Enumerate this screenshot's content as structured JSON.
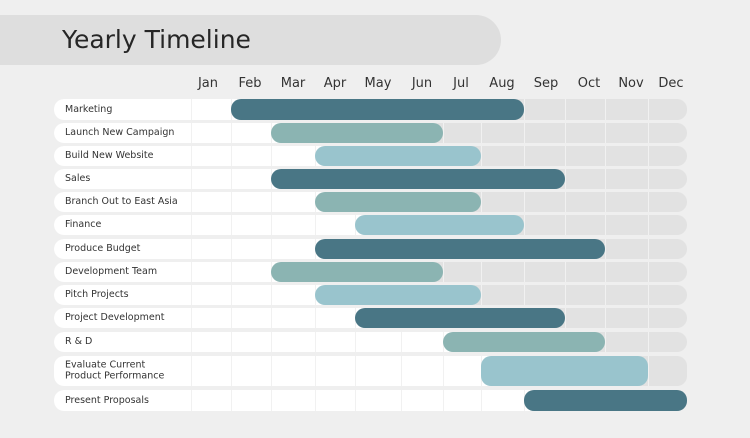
{
  "title": "Yearly Timeline",
  "months": [
    "Jan",
    "Feb",
    "Mar",
    "Apr",
    "May",
    "Jun",
    "Jul",
    "Aug",
    "Sep",
    "Oct",
    "Nov",
    "Dec"
  ],
  "colors": {
    "background": "#efefef",
    "title_banner": "#dedede",
    "track": "#e2e2e2",
    "track_passed": "#ffffff",
    "bar_dark": "#497685",
    "bar_mid": "#8bb4b2",
    "bar_light": "#99c4cd"
  },
  "tasks": [
    {
      "label": "Marketing",
      "start": 1.0,
      "end": 8.0,
      "style": "dark"
    },
    {
      "label": "Launch New Campaign",
      "start": 2.0,
      "end": 6.0,
      "style": "mid"
    },
    {
      "label": "Build New Website",
      "start": 3.0,
      "end": 7.0,
      "style": "light"
    },
    {
      "label": "Sales",
      "start": 2.0,
      "end": 9.0,
      "style": "dark"
    },
    {
      "label": "Branch Out to East Asia",
      "start": 3.0,
      "end": 7.0,
      "style": "mid"
    },
    {
      "label": "Finance",
      "start": 4.0,
      "end": 8.0,
      "style": "light"
    },
    {
      "label": "Produce Budget",
      "start": 3.0,
      "end": 10.0,
      "style": "dark"
    },
    {
      "label": "Development Team",
      "start": 2.0,
      "end": 6.0,
      "style": "mid"
    },
    {
      "label": "Pitch Projects",
      "start": 3.0,
      "end": 7.0,
      "style": "light"
    },
    {
      "label": "Project Development",
      "start": 4.0,
      "end": 9.0,
      "style": "dark"
    },
    {
      "label": "R & D",
      "start": 6.0,
      "end": 10.0,
      "style": "mid"
    },
    {
      "label": "Evaluate Current\nProduct Performance",
      "start": 7.0,
      "end": 11.0,
      "style": "light"
    },
    {
      "label": "Present Proposals",
      "start": 8.0,
      "end": 12.0,
      "style": "dark"
    }
  ]
}
